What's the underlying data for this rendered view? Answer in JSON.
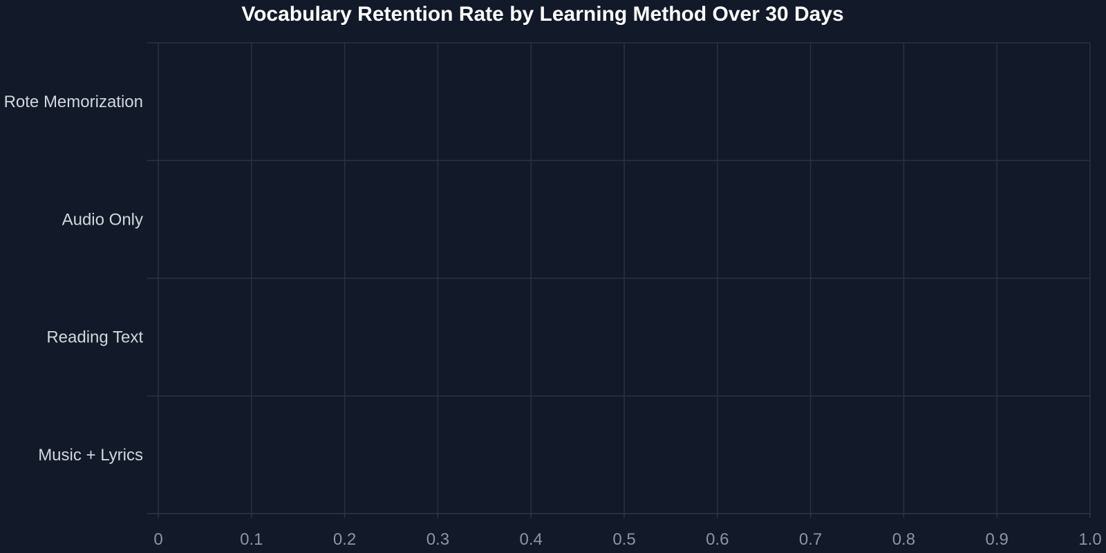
{
  "chart_data": {
    "type": "bar",
    "orientation": "horizontal",
    "title": "Vocabulary Retention Rate by Learning Method Over 30 Days",
    "xlabel": "",
    "ylabel": "",
    "categories": [
      "Rote Memorization",
      "Audio Only",
      "Reading Text",
      "Music + Lyrics"
    ],
    "values": [
      null,
      null,
      null,
      null
    ],
    "xlim": [
      0,
      1
    ],
    "x_ticks": [
      "0",
      "0.1",
      "0.2",
      "0.3",
      "0.4",
      "0.5",
      "0.6",
      "0.7",
      "0.8",
      "0.9",
      "1.0"
    ],
    "grid": true,
    "legend": "none",
    "colors": {
      "background": "#121a29",
      "grid": "#2a3242",
      "title": "#ffffff",
      "category_text": "#d2d6de",
      "tick_text": "#8d95a5"
    }
  }
}
